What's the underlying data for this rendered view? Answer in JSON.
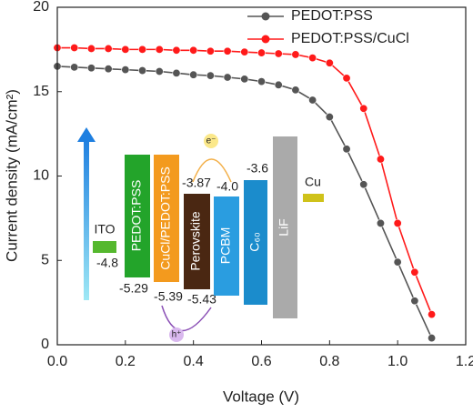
{
  "chart_data": {
    "type": "line",
    "xlabel": "Voltage (V)",
    "ylabel": "Current density (mA/cm²)",
    "x": [
      0,
      0.05,
      0.1,
      0.15,
      0.2,
      0.25,
      0.3,
      0.35,
      0.4,
      0.45,
      0.5,
      0.55,
      0.6,
      0.65,
      0.7,
      0.75,
      0.8,
      0.85,
      0.9,
      0.95,
      1.0,
      1.05,
      1.1
    ],
    "series": [
      {
        "name": "PEDOT:PSS",
        "color": "#555555",
        "values": [
          16.5,
          16.45,
          16.4,
          16.35,
          16.3,
          16.25,
          16.2,
          16.1,
          16.0,
          15.95,
          15.85,
          15.75,
          15.6,
          15.4,
          15.1,
          14.5,
          13.5,
          11.6,
          9.5,
          7.2,
          4.9,
          2.6,
          0.4
        ]
      },
      {
        "name": "PEDOT:PSS/CuCl",
        "color": "#ff1a1a",
        "values": [
          17.6,
          17.6,
          17.55,
          17.55,
          17.5,
          17.5,
          17.5,
          17.45,
          17.45,
          17.4,
          17.4,
          17.35,
          17.3,
          17.25,
          17.2,
          17.0,
          16.7,
          15.8,
          14.0,
          11.0,
          7.2,
          4.3,
          1.8
        ]
      }
    ],
    "xlim": [
      0,
      1.2
    ],
    "xticks": [
      {
        "value": 0,
        "label": "0.0"
      },
      0.2,
      0.4,
      0.6,
      0.8,
      {
        "value": 1,
        "label": "1.0"
      },
      1.2
    ],
    "ylim": [
      0,
      20
    ],
    "yticks": [
      0,
      5,
      10,
      15,
      20
    ],
    "legend": "top-right"
  },
  "inset": {
    "layers": [
      "ITO",
      "PEDOT:PSS",
      "CuCl/PEDOT:PSS",
      "Perovskite",
      "PCBM",
      "C₆₀",
      "LiF",
      "Cu"
    ],
    "levels": [
      "-4.8",
      "-5.29",
      "-5.39",
      "-3.87",
      "-5.43",
      "-4.0",
      "-3.6"
    ],
    "carriers": [
      "e⁻",
      "h⁺"
    ]
  }
}
